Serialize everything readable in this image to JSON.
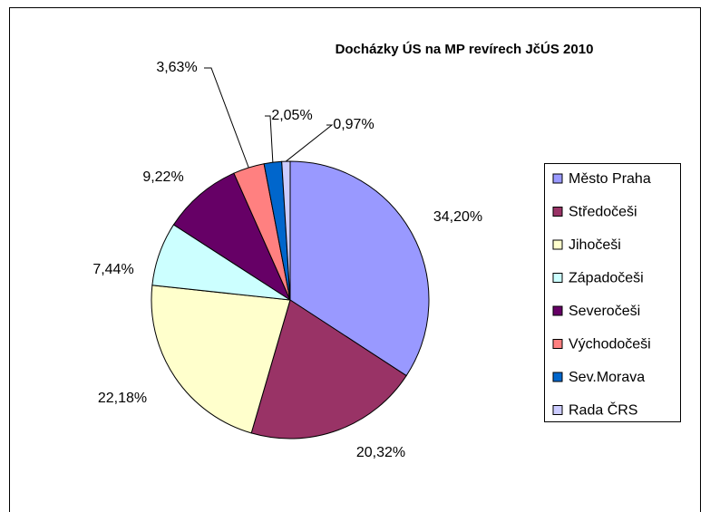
{
  "chart_data": {
    "type": "pie",
    "title": "Docházky ÚS na MP revírech JčÚS 2010",
    "categories": [
      "Město Praha",
      "Středočeši",
      "Jihočeši",
      "Západočeši",
      "Severočeši",
      "Východočeši",
      "Sev.Morava",
      "Rada ČRS"
    ],
    "values": [
      34.2,
      20.32,
      22.18,
      7.44,
      9.22,
      3.63,
      2.05,
      0.97
    ],
    "value_labels": [
      "34,20%",
      "20,32%",
      "22,18%",
      "7,44%",
      "9,22%",
      "3,63%",
      "2,05%",
      "0,97%"
    ],
    "colors": [
      "#9999ff",
      "#993366",
      "#ffffcc",
      "#ccffff",
      "#660066",
      "#ff8080",
      "#0066cc",
      "#ccccff"
    ],
    "legend": "right"
  }
}
